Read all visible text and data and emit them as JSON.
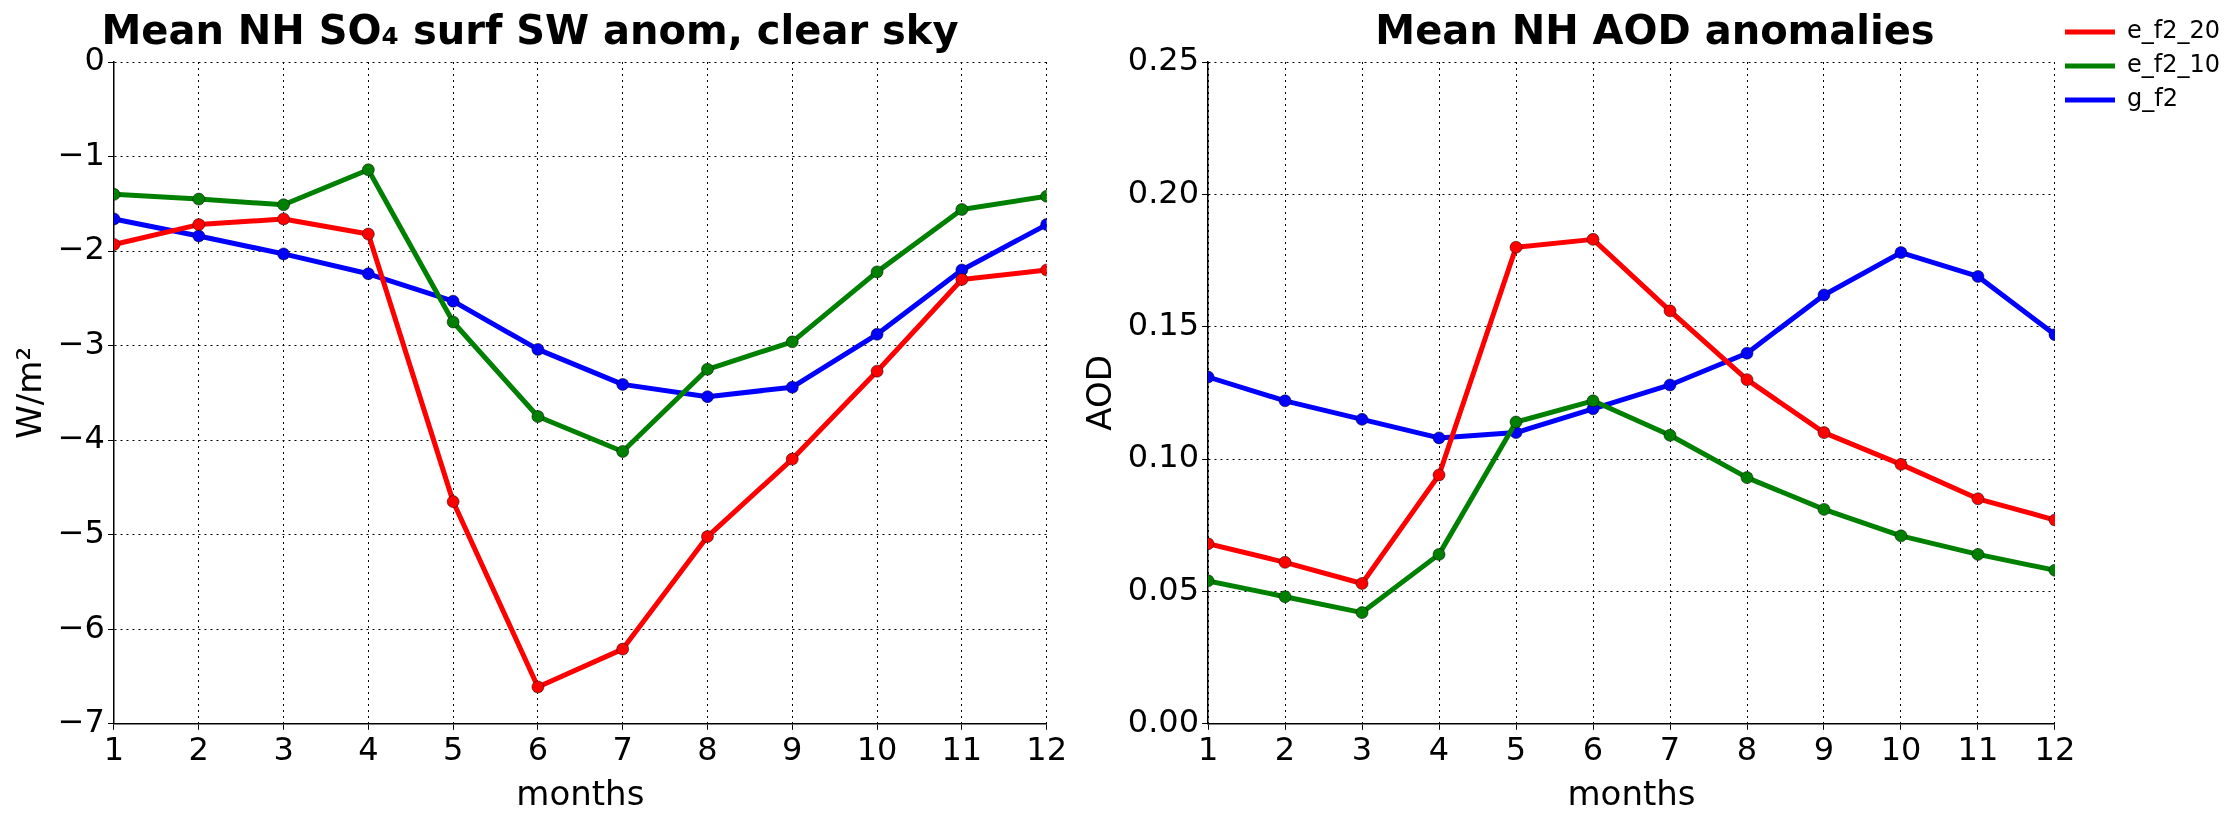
{
  "chart_data": [
    {
      "type": "line",
      "title": "Mean NH SO₄ surf SW anom, clear sky",
      "xlabel": "months",
      "ylabel": "W/m²",
      "x": [
        1,
        2,
        3,
        4,
        5,
        6,
        7,
        8,
        9,
        10,
        11,
        12
      ],
      "xlim": [
        1,
        12
      ],
      "xticks": [
        1,
        2,
        3,
        4,
        5,
        6,
        7,
        8,
        9,
        10,
        11,
        12
      ],
      "ylim": [
        -7,
        0
      ],
      "yticks": [
        -7,
        -6,
        -5,
        -4,
        -3,
        -2,
        -1,
        0
      ],
      "grid": true,
      "legend": false,
      "marker": "circle",
      "line_style": "solid",
      "series": [
        {
          "color": "#ff0000",
          "values": [
            -1.93,
            -1.72,
            -1.66,
            -1.82,
            -4.65,
            -6.61,
            -6.21,
            -5.02,
            -4.2,
            -3.27,
            -2.3,
            -2.2
          ]
        },
        {
          "color": "#008000",
          "values": [
            -1.4,
            -1.45,
            -1.51,
            -1.14,
            -2.75,
            -3.75,
            -4.12,
            -3.25,
            -2.96,
            -2.22,
            -1.56,
            -1.42
          ]
        },
        {
          "color": "#0000ff",
          "values": [
            -1.66,
            -1.84,
            -2.03,
            -2.24,
            -2.53,
            -3.04,
            -3.41,
            -3.54,
            -3.44,
            -2.88,
            -2.2,
            -1.72
          ]
        }
      ]
    },
    {
      "type": "line",
      "title": "Mean NH AOD anomalies",
      "xlabel": "months",
      "ylabel": "AOD",
      "x": [
        1,
        2,
        3,
        4,
        5,
        6,
        7,
        8,
        9,
        10,
        11,
        12
      ],
      "xlim": [
        1,
        12
      ],
      "xticks": [
        1,
        2,
        3,
        4,
        5,
        6,
        7,
        8,
        9,
        10,
        11,
        12
      ],
      "ylim": [
        0,
        0.25
      ],
      "yticks": [
        {
          "value": 0,
          "label": "0.00"
        },
        {
          "value": 0.05,
          "label": "0.05"
        },
        {
          "value": 0.1,
          "label": "0.10"
        },
        {
          "value": 0.15,
          "label": "0.15"
        },
        {
          "value": 0.2,
          "label": "0.20"
        },
        {
          "value": 0.25,
          "label": "0.25"
        }
      ],
      "grid": true,
      "legend": "right",
      "marker": "circle",
      "line_style": "solid",
      "series": [
        {
          "name": "e_f2_20",
          "color": "#ff0000",
          "values": [
            0.068,
            0.061,
            0.053,
            0.094,
            0.18,
            0.183,
            0.156,
            0.13,
            0.11,
            0.098,
            0.085,
            0.077
          ]
        },
        {
          "name": "e_f2_10",
          "color": "#008000",
          "values": [
            0.054,
            0.048,
            0.042,
            0.064,
            0.114,
            0.122,
            0.109,
            0.093,
            0.081,
            0.071,
            0.064,
            0.058
          ]
        },
        {
          "name": "g_f2",
          "color": "#0000ff",
          "values": [
            0.131,
            0.122,
            0.115,
            0.108,
            0.11,
            0.119,
            0.128,
            0.14,
            0.162,
            0.178,
            0.169,
            0.147
          ]
        }
      ]
    }
  ]
}
